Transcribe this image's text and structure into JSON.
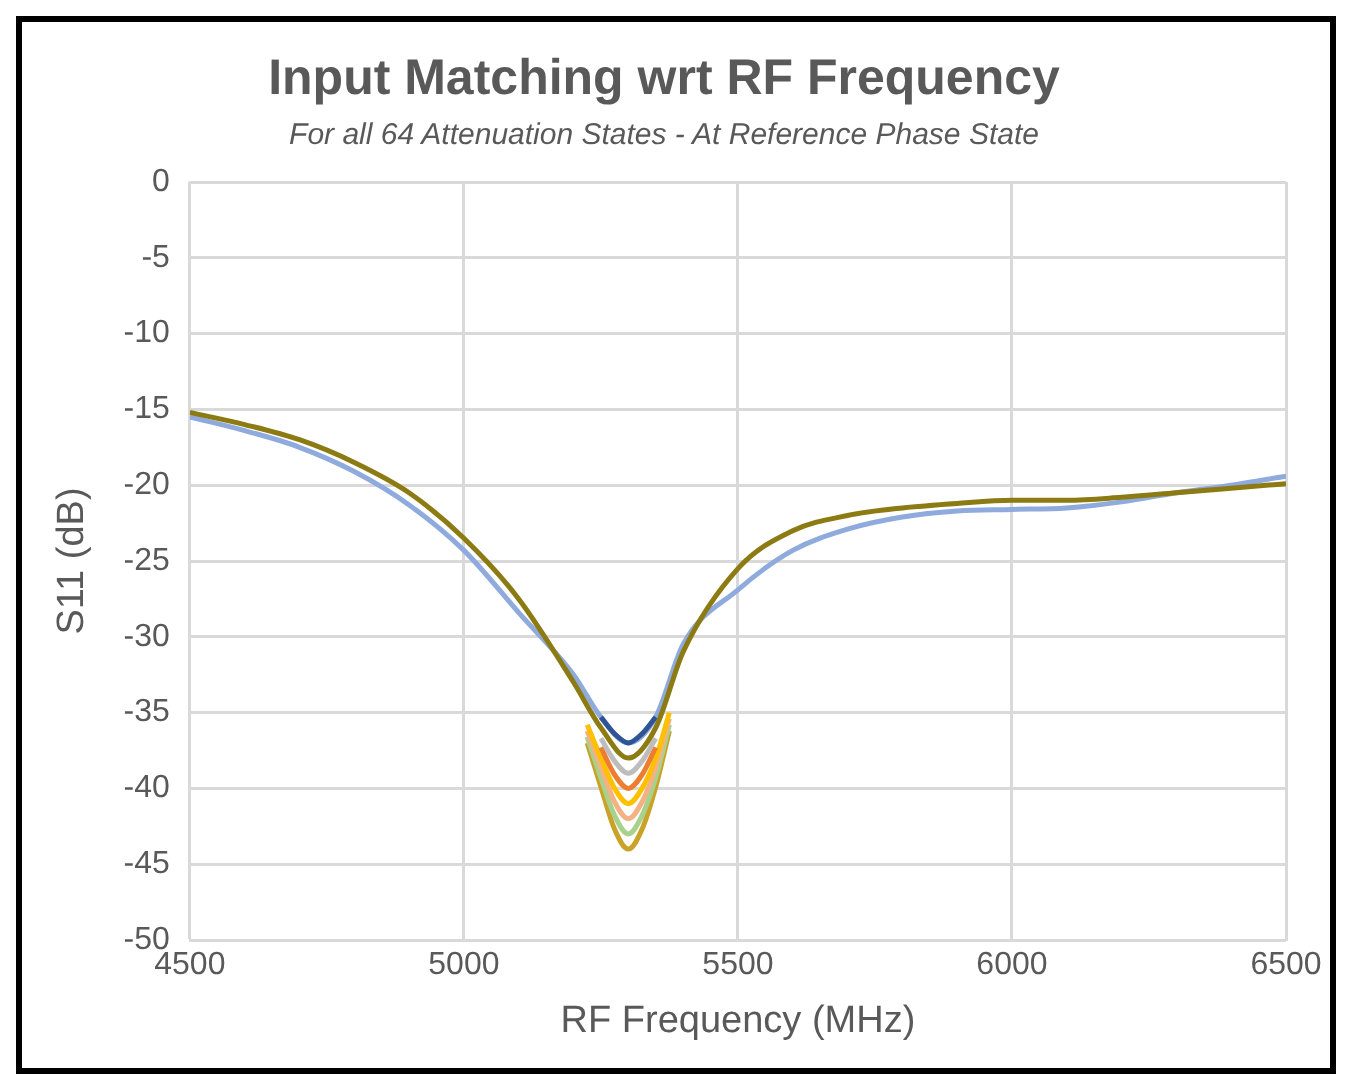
{
  "chart_data": {
    "type": "line",
    "title": "Input Matching wrt RF Frequency",
    "subtitle": "For all 64 Attenuation States - At Reference Phase State",
    "xlabel": "RF Frequency (MHz)",
    "ylabel": "S11 (dB)",
    "x": [
      4500,
      4600,
      4700,
      4800,
      4900,
      5000,
      5100,
      5200,
      5250,
      5300,
      5350,
      5400,
      5500,
      5600,
      5700,
      5800,
      5900,
      6000,
      6100,
      6200,
      6300,
      6400,
      6500
    ],
    "series": [
      {
        "color": "#8faadc",
        "values": [
          -15.5,
          -16.4,
          -17.5,
          -19.1,
          -21.3,
          -24.3,
          -28.4,
          -32.5,
          -35.3,
          -37,
          -35.3,
          -30.5,
          -26.9,
          -24.3,
          -22.9,
          -22.1,
          -21.7,
          -21.6,
          -21.5,
          -21.1,
          -20.5,
          -20,
          -19.4
        ]
      },
      {
        "color": "#c9a227",
        "x": [
          5225,
          5250,
          5275,
          5300,
          5325,
          5350,
          5375
        ],
        "values": [
          -37,
          -39.9,
          -42.7,
          -44,
          -42.7,
          -39.9,
          -36.2
        ]
      },
      {
        "color": "#a9d18e",
        "x": [
          5225,
          5250,
          5275,
          5300,
          5325,
          5350,
          5375
        ],
        "values": [
          -36.6,
          -39.3,
          -41.8,
          -43,
          -41.8,
          -39.3,
          -35.8
        ]
      },
      {
        "color": "#f4b183",
        "x": [
          5225,
          5250,
          5275,
          5300,
          5325,
          5350,
          5375
        ],
        "values": [
          -36.2,
          -38.6,
          -40.9,
          -42,
          -40.9,
          -38.6,
          -35.4
        ]
      },
      {
        "color": "#ffc000",
        "x": [
          5225,
          5250,
          5275,
          5300,
          5325,
          5350,
          5375
        ],
        "values": [
          -35.8,
          -38,
          -40,
          -41,
          -40,
          -38,
          -35
        ]
      },
      {
        "color": "#ed7d31",
        "x": [
          5250,
          5275,
          5300,
          5325,
          5350
        ],
        "values": [
          -37.3,
          -39.1,
          -40,
          -39.1,
          -37.3
        ]
      },
      {
        "color": "#bdbdbd",
        "x": [
          5250,
          5275,
          5300,
          5325,
          5350
        ],
        "values": [
          -36.7,
          -38.2,
          -39,
          -38.2,
          -36.7
        ]
      },
      {
        "color": "#2f5597",
        "x": [
          5250,
          5275,
          5300,
          5325,
          5350
        ],
        "values": [
          -35.3,
          -36.4,
          -37,
          -36.4,
          -35.3
        ]
      },
      {
        "color": "#8c7a12",
        "values": [
          -15.2,
          -16,
          -17,
          -18.5,
          -20.5,
          -23.5,
          -27.5,
          -33,
          -36,
          -38,
          -36,
          -31,
          -25.5,
          -23,
          -22,
          -21.5,
          -21.2,
          -21,
          -21,
          -20.8,
          -20.5,
          -20.2,
          -19.9
        ]
      }
    ],
    "xlim": [
      4500,
      6500
    ],
    "xticks": [
      4500,
      5000,
      5500,
      6000,
      6500
    ],
    "ylim": [
      -50,
      0
    ],
    "yticks": [
      0,
      -5,
      -10,
      -15,
      -20,
      -25,
      -30,
      -35,
      -40,
      -45,
      -50
    ],
    "grid": true,
    "legend": false,
    "marker": "none",
    "line_style": "solid"
  }
}
